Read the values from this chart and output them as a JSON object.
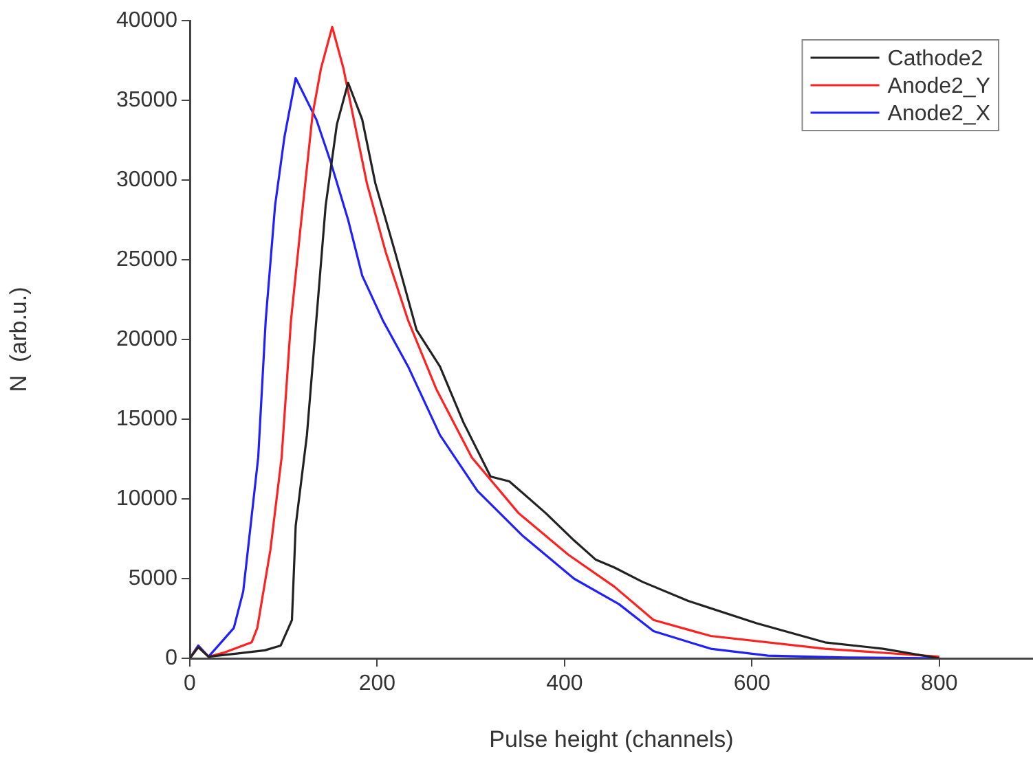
{
  "chart_data": {
    "type": "line",
    "xlabel": "Pulse height (channels)",
    "ylabel": "N  (arb.u.)",
    "xlim": [
      0,
      900
    ],
    "xticks": [
      0,
      200,
      400,
      600,
      800
    ],
    "ylim": [
      0,
      40000
    ],
    "yticks": [
      0,
      5000,
      10000,
      15000,
      20000,
      25000,
      30000,
      35000,
      40000
    ],
    "legend": "top right",
    "marker": "none",
    "line_style": "solid",
    "series": [
      {
        "name": "Cathode2",
        "color": "#222222",
        "x": [
          0,
          9,
          20,
          50,
          80,
          97,
          109,
          113,
          125,
          135,
          145,
          157,
          169,
          184,
          198,
          219,
          242,
          267,
          292,
          321,
          341,
          380,
          410,
          433,
          453,
          483,
          532,
          605,
          678,
          740,
          800
        ],
        "values": [
          0,
          700,
          100,
          300,
          500,
          800,
          2400,
          8300,
          14000,
          21200,
          28400,
          33500,
          36100,
          33800,
          29800,
          25500,
          20600,
          18300,
          14800,
          11400,
          11100,
          9100,
          7400,
          6200,
          5700,
          4800,
          3600,
          2200,
          1000,
          600,
          0
        ]
      },
      {
        "name": "Anode2_Y",
        "color": "#ff2020",
        "x": [
          0,
          9,
          20,
          36,
          66,
          72,
          86,
          98,
          108,
          118,
          131,
          140,
          152,
          164,
          174,
          189,
          209,
          233,
          263,
          301,
          351,
          404,
          453,
          495,
          556,
          678,
          800
        ],
        "values": [
          0,
          700,
          100,
          350,
          1000,
          1900,
          6800,
          12600,
          21200,
          26900,
          34100,
          37000,
          39600,
          37000,
          34100,
          29800,
          25500,
          21200,
          16900,
          12600,
          9100,
          6500,
          4500,
          2400,
          1400,
          600,
          100
        ]
      },
      {
        "name": "Anode2_X",
        "color": "#2020ff",
        "x": [
          0,
          9,
          20,
          47,
          57,
          62,
          73,
          81,
          91,
          101,
          113,
          135,
          150,
          169,
          184,
          206,
          233,
          267,
          307,
          355,
          410,
          458,
          495,
          556,
          617,
          700,
          800
        ],
        "values": [
          0,
          800,
          100,
          1900,
          4200,
          6800,
          12600,
          21200,
          28400,
          32700,
          36400,
          33800,
          31200,
          27500,
          24000,
          21200,
          18300,
          14000,
          10500,
          7700,
          5000,
          3400,
          1700,
          600,
          170,
          50,
          0
        ]
      }
    ]
  }
}
